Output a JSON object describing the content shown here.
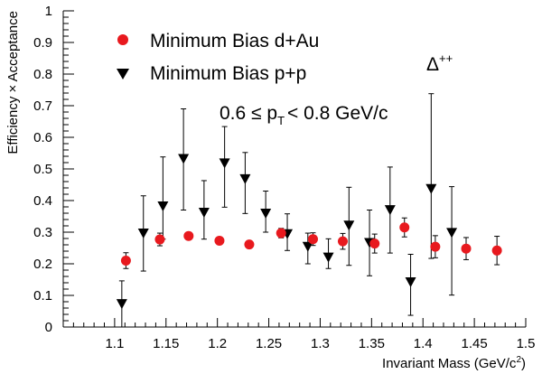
{
  "chart_data": {
    "type": "scatter",
    "xlabel_main": "Invariant Mass (GeV/c",
    "xlabel_sup": "2",
    "xlabel_end": ")",
    "ylabel": "Efficiency × Acceptance",
    "xlim": [
      1.05,
      1.5
    ],
    "ylim": [
      0,
      1
    ],
    "x_ticks": [
      "1.1",
      "1.15",
      "1.2",
      "1.25",
      "1.3",
      "1.35",
      "1.4",
      "1.45",
      "1.5"
    ],
    "y_ticks": [
      "0",
      "0.1",
      "0.2",
      "0.3",
      "0.4",
      "0.5",
      "0.6",
      "0.7",
      "0.8",
      "0.9",
      "1"
    ],
    "grid": false,
    "legend_position": "top-left",
    "annotation": {
      "main": "0.6 ≤ p",
      "sub": "T",
      "tail": "< 0.8 GeV/c"
    },
    "particle_label": {
      "base": "Δ",
      "sup": "++"
    },
    "series": [
      {
        "name": "Minimum Bias d+Au",
        "marker": "circle",
        "color": "#e8191e",
        "points": [
          {
            "x": 1.111,
            "y": 0.21,
            "err": 0.025
          },
          {
            "x": 1.144,
            "y": 0.277,
            "err": 0.02
          },
          {
            "x": 1.172,
            "y": 0.288,
            "err": 0.01
          },
          {
            "x": 1.202,
            "y": 0.273,
            "err": 0.01
          },
          {
            "x": 1.231,
            "y": 0.261,
            "err": 0.01
          },
          {
            "x": 1.262,
            "y": 0.297,
            "err": 0.015
          },
          {
            "x": 1.293,
            "y": 0.278,
            "err": 0.02
          },
          {
            "x": 1.322,
            "y": 0.271,
            "err": 0.025
          },
          {
            "x": 1.353,
            "y": 0.264,
            "err": 0.03
          },
          {
            "x": 1.382,
            "y": 0.315,
            "err": 0.03
          },
          {
            "x": 1.412,
            "y": 0.254,
            "err": 0.035
          },
          {
            "x": 1.442,
            "y": 0.248,
            "err": 0.035
          },
          {
            "x": 1.472,
            "y": 0.242,
            "err": 0.045
          }
        ]
      },
      {
        "name": "Minimum Bias p+p",
        "marker": "triangle-down",
        "color": "#000000",
        "points": [
          {
            "x": 1.107,
            "y": 0.074,
            "up": 0.072,
            "down": 0.074
          },
          {
            "x": 1.128,
            "y": 0.297,
            "up": 0.118,
            "down": 0.12
          },
          {
            "x": 1.147,
            "y": 0.383,
            "up": 0.155,
            "down": 0.105
          },
          {
            "x": 1.167,
            "y": 0.533,
            "up": 0.157,
            "down": 0.163
          },
          {
            "x": 1.187,
            "y": 0.363,
            "up": 0.1,
            "down": 0.085
          },
          {
            "x": 1.207,
            "y": 0.519,
            "up": 0.115,
            "down": 0.14
          },
          {
            "x": 1.227,
            "y": 0.469,
            "up": 0.083,
            "down": 0.11
          },
          {
            "x": 1.247,
            "y": 0.36,
            "up": 0.07,
            "down": 0.06
          },
          {
            "x": 1.268,
            "y": 0.295,
            "up": 0.063,
            "down": 0.053
          },
          {
            "x": 1.288,
            "y": 0.255,
            "up": 0.042,
            "down": 0.055
          },
          {
            "x": 1.308,
            "y": 0.221,
            "up": 0.058,
            "down": 0.036
          },
          {
            "x": 1.328,
            "y": 0.322,
            "up": 0.12,
            "down": 0.127
          },
          {
            "x": 1.348,
            "y": 0.267,
            "up": 0.103,
            "down": 0.105
          },
          {
            "x": 1.368,
            "y": 0.371,
            "up": 0.135,
            "down": 0.137
          },
          {
            "x": 1.388,
            "y": 0.143,
            "up": 0.087,
            "down": 0.106
          },
          {
            "x": 1.408,
            "y": 0.438,
            "up": 0.3,
            "down": 0.221
          },
          {
            "x": 1.428,
            "y": 0.299,
            "up": 0.145,
            "down": 0.198
          }
        ]
      }
    ]
  }
}
